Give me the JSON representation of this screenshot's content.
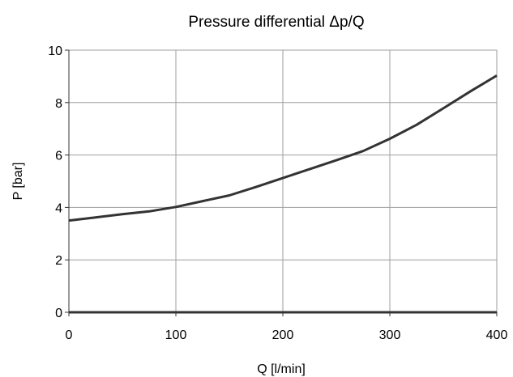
{
  "chart_data": {
    "type": "line",
    "title": "Pressure differential Δp/Q",
    "xlabel": "Q [l/min]",
    "ylabel": "P [bar]",
    "xlim": [
      0,
      400
    ],
    "ylim": [
      0,
      10
    ],
    "x_ticks": [
      "0",
      "100",
      "200",
      "300",
      "400"
    ],
    "y_ticks": [
      "0",
      "2",
      "4",
      "6",
      "8",
      "10"
    ],
    "x_tick_values": [
      0,
      100,
      200,
      300,
      400
    ],
    "y_tick_values": [
      0,
      2,
      4,
      6,
      8,
      10
    ],
    "grid": true,
    "series": [
      {
        "x": [
          0,
          25,
          50,
          75,
          100,
          125,
          150,
          175,
          200,
          225,
          250,
          275,
          300,
          325,
          350,
          375,
          400
        ],
        "values": [
          3.5,
          3.62,
          3.74,
          3.85,
          4.02,
          4.24,
          4.46,
          4.78,
          5.12,
          5.46,
          5.8,
          6.15,
          6.62,
          7.15,
          7.78,
          8.42,
          9.03
        ]
      }
    ]
  },
  "colors": {
    "line": "#333333",
    "grid": "#9e9e9e",
    "axis": "#333333"
  }
}
